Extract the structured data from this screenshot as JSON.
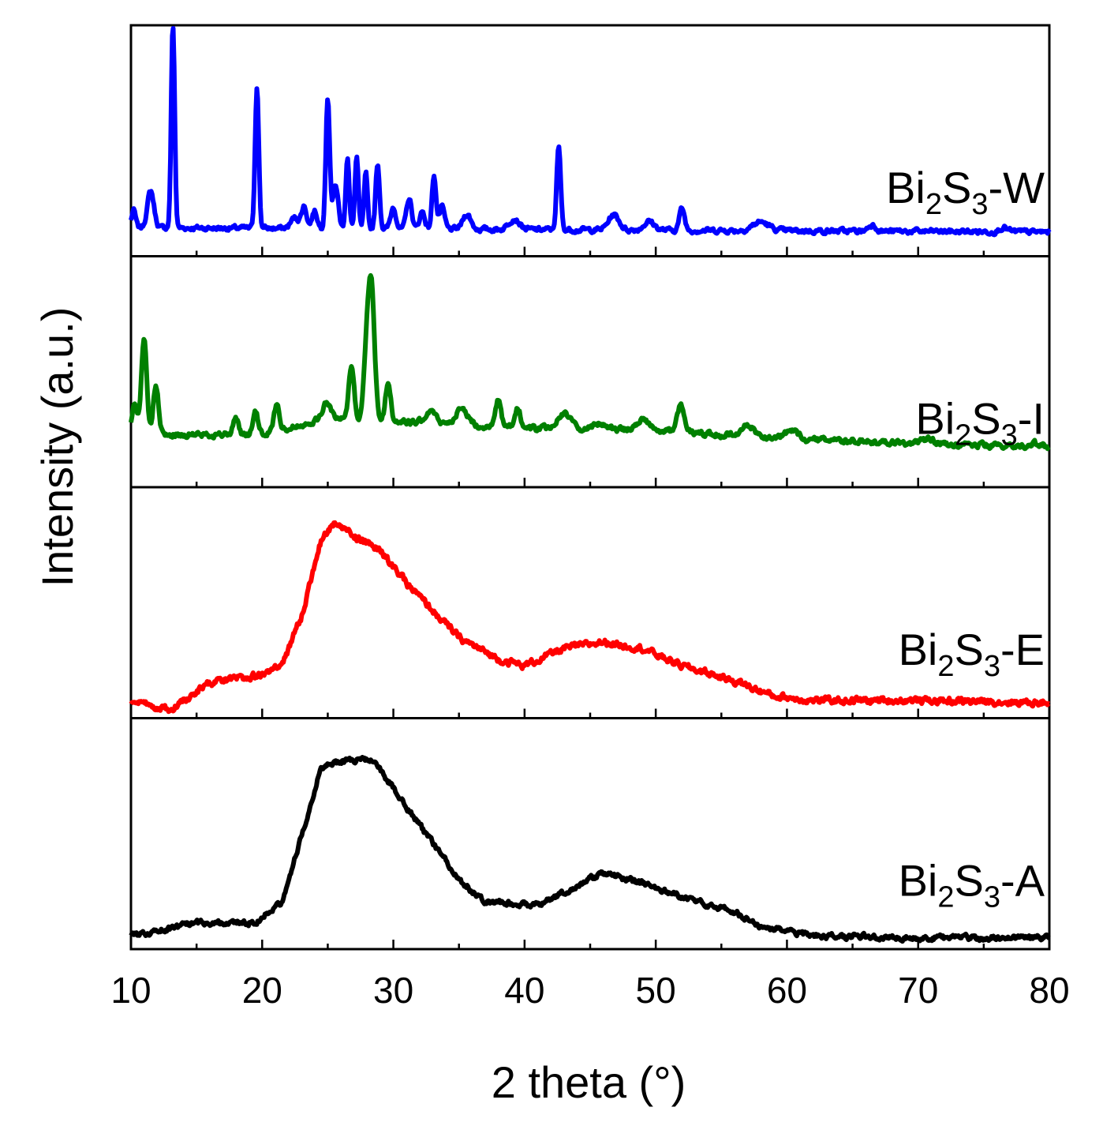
{
  "chart_data": {
    "type": "line",
    "layout": "stacked-panels",
    "xlabel": "2 theta (°)",
    "ylabel": "Intensity (a.u.)",
    "xlim": [
      10,
      80
    ],
    "xticks": [
      10,
      20,
      30,
      40,
      50,
      60,
      70,
      80
    ],
    "yticks_shown": false,
    "grid": false,
    "series": [
      {
        "name": "Bi2S3-W",
        "label_parts": [
          "Bi",
          "2",
          "S",
          "3",
          "-W"
        ],
        "color": "#0000ff",
        "baseline": 0.05,
        "noise": 0.018,
        "curve": [
          [
            10,
            0.06
          ],
          [
            80,
            0.04
          ]
        ],
        "peaks": [
          [
            10.2,
            0.08,
            0.15
          ],
          [
            11.5,
            0.17,
            0.25
          ],
          [
            13.2,
            0.95,
            0.13
          ],
          [
            19.6,
            0.65,
            0.14
          ],
          [
            22.5,
            0.05,
            0.3
          ],
          [
            23.2,
            0.1,
            0.2
          ],
          [
            24.0,
            0.08,
            0.2
          ],
          [
            25.0,
            0.6,
            0.15
          ],
          [
            25.6,
            0.2,
            0.2
          ],
          [
            26.5,
            0.33,
            0.13
          ],
          [
            27.2,
            0.33,
            0.13
          ],
          [
            27.9,
            0.25,
            0.13
          ],
          [
            28.8,
            0.3,
            0.15
          ],
          [
            30.0,
            0.1,
            0.2
          ],
          [
            31.2,
            0.14,
            0.2
          ],
          [
            32.2,
            0.08,
            0.2
          ],
          [
            33.1,
            0.25,
            0.15
          ],
          [
            33.7,
            0.1,
            0.2
          ],
          [
            35.6,
            0.07,
            0.3
          ],
          [
            39.2,
            0.05,
            0.4
          ],
          [
            42.6,
            0.38,
            0.15
          ],
          [
            46.8,
            0.07,
            0.4
          ],
          [
            49.5,
            0.04,
            0.4
          ],
          [
            52.0,
            0.1,
            0.2
          ],
          [
            58.0,
            0.04,
            0.6
          ],
          [
            66.5,
            0.03,
            0.3
          ],
          [
            76.5,
            0.02,
            0.3
          ]
        ]
      },
      {
        "name": "Bi2S3-I",
        "label_parts": [
          "Bi",
          "2",
          "S",
          "3",
          "-I"
        ],
        "color": "#008000",
        "baseline": 0.1,
        "noise": 0.02,
        "curve": [
          [
            10,
            0.12
          ],
          [
            20,
            0.12
          ],
          [
            25,
            0.2
          ],
          [
            30,
            0.18
          ],
          [
            40,
            0.15
          ],
          [
            50,
            0.14
          ],
          [
            60,
            0.1
          ],
          [
            70,
            0.08
          ],
          [
            80,
            0.06
          ]
        ],
        "peaks": [
          [
            10.3,
            0.15,
            0.2
          ],
          [
            11.0,
            0.45,
            0.2
          ],
          [
            11.9,
            0.22,
            0.2
          ],
          [
            18.0,
            0.08,
            0.2
          ],
          [
            19.5,
            0.1,
            0.2
          ],
          [
            21.1,
            0.12,
            0.2
          ],
          [
            24.9,
            0.07,
            0.3
          ],
          [
            26.8,
            0.25,
            0.2
          ],
          [
            27.9,
            0.2,
            0.2
          ],
          [
            28.3,
            0.65,
            0.25
          ],
          [
            29.6,
            0.18,
            0.2
          ],
          [
            32.8,
            0.06,
            0.4
          ],
          [
            35.2,
            0.07,
            0.5
          ],
          [
            38.0,
            0.12,
            0.2
          ],
          [
            39.5,
            0.09,
            0.2
          ],
          [
            43.0,
            0.07,
            0.5
          ],
          [
            45.8,
            0.03,
            0.5
          ],
          [
            49.0,
            0.05,
            0.5
          ],
          [
            51.9,
            0.12,
            0.3
          ],
          [
            57.0,
            0.05,
            0.5
          ],
          [
            60.3,
            0.04,
            0.5
          ],
          [
            70.7,
            0.02,
            0.5
          ],
          [
            79.0,
            0.02,
            0.5
          ]
        ]
      },
      {
        "name": "Bi2S3-E",
        "label_parts": [
          "Bi",
          "2",
          "S",
          "3",
          "-E"
        ],
        "color": "#ff0000",
        "baseline": 0.0,
        "noise": 0.025,
        "curve": [
          [
            10,
            0.05
          ],
          [
            13,
            0.02
          ],
          [
            16,
            0.14
          ],
          [
            20,
            0.18
          ],
          [
            21.5,
            0.22
          ],
          [
            23,
            0.45
          ],
          [
            24.5,
            0.8
          ],
          [
            25.5,
            0.88
          ],
          [
            27,
            0.82
          ],
          [
            29,
            0.75
          ],
          [
            31,
            0.6
          ],
          [
            35,
            0.35
          ],
          [
            38,
            0.25
          ],
          [
            40,
            0.22
          ],
          [
            43,
            0.3
          ],
          [
            46,
            0.33
          ],
          [
            49,
            0.3
          ],
          [
            52,
            0.22
          ],
          [
            56,
            0.15
          ],
          [
            59,
            0.08
          ],
          [
            62,
            0.06
          ],
          [
            70,
            0.06
          ],
          [
            80,
            0.05
          ]
        ]
      },
      {
        "name": "Bi2S3-A",
        "label_parts": [
          "Bi",
          "2",
          "S",
          "3",
          "-A"
        ],
        "color": "#000000",
        "baseline": 0.0,
        "noise": 0.02,
        "curve": [
          [
            10,
            0.04
          ],
          [
            12,
            0.06
          ],
          [
            15,
            0.1
          ],
          [
            19.5,
            0.1
          ],
          [
            21.5,
            0.2
          ],
          [
            23,
            0.5
          ],
          [
            24.5,
            0.82
          ],
          [
            26.5,
            0.85
          ],
          [
            28.5,
            0.85
          ],
          [
            30,
            0.72
          ],
          [
            32,
            0.55
          ],
          [
            35,
            0.3
          ],
          [
            37,
            0.2
          ],
          [
            41,
            0.18
          ],
          [
            43,
            0.24
          ],
          [
            46,
            0.33
          ],
          [
            49,
            0.28
          ],
          [
            52,
            0.22
          ],
          [
            56,
            0.15
          ],
          [
            58,
            0.08
          ],
          [
            62,
            0.04
          ],
          [
            70,
            0.03
          ],
          [
            80,
            0.03
          ]
        ]
      }
    ]
  }
}
